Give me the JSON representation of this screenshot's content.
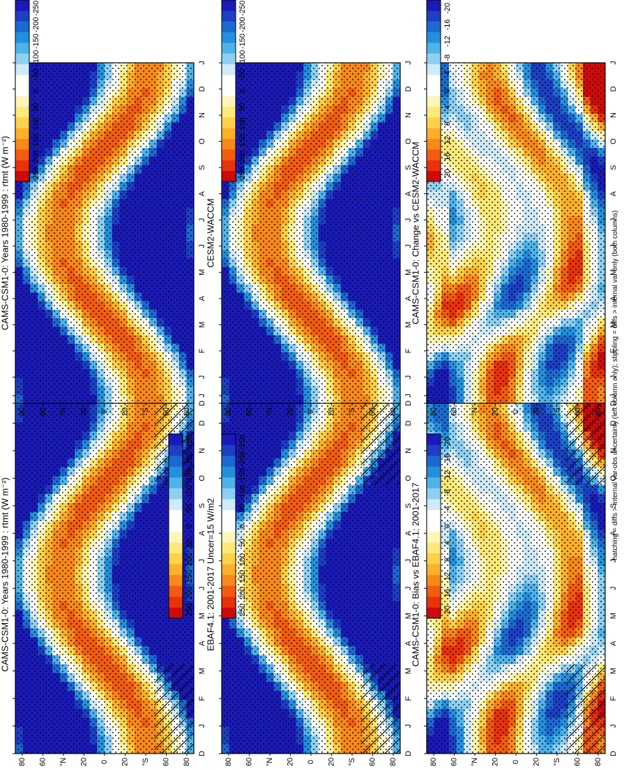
{
  "figure": {
    "orientation": "rotated 90 degrees clockwise (portrait page of a landscape figure)",
    "footnote": "hatching = diffs > internal var-obs uncertainty (left column only); stippling = diffs > internal var only (both columns)"
  },
  "chart_data": [
    {
      "id": "bl",
      "type": "heatmap",
      "title": "CAMS-CSM1-0: Years 1980-1999 : rtmt (W m⁻²)",
      "x_tick_labels": [
        "D",
        "J",
        "F",
        "M",
        "A",
        "M",
        "J",
        "J",
        "A",
        "S",
        "O",
        "N",
        "D",
        "J"
      ],
      "y_tick_labels": [
        "80",
        "60",
        "°N",
        "20",
        "0",
        "20",
        "°S",
        "60",
        "80"
      ],
      "hatching": true,
      "colorbar": {
        "ticks": [
          "250",
          "200",
          "150",
          "100",
          "50",
          "0",
          "-50",
          "-100",
          "-150",
          "-200",
          "-250"
        ]
      }
    },
    {
      "id": "br",
      "type": "heatmap",
      "title": "CAMS-CSM1-0: Years 1980-1999 : rtmt (W m⁻²)",
      "x_tick_labels": [
        "D",
        "J",
        "F",
        "M",
        "A",
        "M",
        "J",
        "J",
        "A",
        "S",
        "O",
        "N",
        "D",
        "J"
      ],
      "y_tick_labels": [
        "80",
        "60",
        "°N",
        "20",
        "0",
        "20",
        "°S",
        "60",
        "80"
      ],
      "hatching": false,
      "colorbar": {
        "ticks": [
          "250",
          "200",
          "150",
          "100",
          "50",
          "0",
          "-50",
          "-100",
          "-150",
          "-200",
          "-250"
        ]
      }
    },
    {
      "id": "ml",
      "type": "heatmap",
      "title": "EBAF4.1: 2001-2017 Uncer=15 W/m2",
      "x_tick_labels": [
        "D",
        "J",
        "F",
        "M",
        "A",
        "M",
        "J",
        "J",
        "A",
        "S",
        "O",
        "N",
        "D",
        "J"
      ],
      "y_tick_labels": [
        "80",
        "60",
        "°N",
        "20",
        "0",
        "20",
        "°S",
        "60",
        "80"
      ],
      "hatching": true,
      "colorbar": {
        "ticks": [
          "250",
          "200",
          "150",
          "100",
          "50",
          "0",
          "-50",
          "-100",
          "-150",
          "-200",
          "-250"
        ]
      }
    },
    {
      "id": "mr",
      "type": "heatmap",
      "title": "CESM2-WACCM",
      "x_tick_labels": [
        "D",
        "J",
        "F",
        "M",
        "A",
        "M",
        "J",
        "J",
        "A",
        "S",
        "O",
        "N",
        "D",
        "J"
      ],
      "y_tick_labels": [
        "80",
        "60",
        "°N",
        "20",
        "0",
        "20",
        "°S",
        "60",
        "80"
      ],
      "hatching": false,
      "colorbar": {
        "ticks": [
          "250",
          "200",
          "150",
          "100",
          "50",
          "0",
          "-50",
          "-100",
          "-150",
          "-200",
          "-250"
        ]
      }
    },
    {
      "id": "tl",
      "type": "heatmap",
      "title": "CAMS-CSM1-0: Bias vs EBAF4.1: 2001-2017",
      "x_tick_labels": [
        "D",
        "J",
        "F",
        "M",
        "A",
        "M",
        "J",
        "J",
        "A",
        "S",
        "O",
        "N",
        "D",
        "J"
      ],
      "y_tick_labels": [
        "80",
        "60",
        "°N",
        "20",
        "0",
        "20",
        "°S",
        "60",
        "80"
      ],
      "hatching": true,
      "colorbar": {
        "ticks": [
          "20",
          "16",
          "12",
          "8",
          "4",
          "0",
          "-4",
          "-8",
          "-12",
          "-16",
          "-20"
        ]
      }
    },
    {
      "id": "tr",
      "type": "heatmap",
      "title": "CAMS-CSM1-0: Change vs CESM2-WACCM",
      "x_tick_labels": [
        "D",
        "J",
        "F",
        "M",
        "A",
        "M",
        "J",
        "J",
        "A",
        "S",
        "O",
        "N",
        "D",
        "J"
      ],
      "y_tick_labels": [
        "80",
        "60",
        "°N",
        "20",
        "0",
        "20",
        "°S",
        "60",
        "80"
      ],
      "hatching": false,
      "colorbar": {
        "ticks": [
          "20",
          "16",
          "12",
          "8",
          "4",
          "0",
          "-4",
          "-8",
          "-12",
          "-16",
          "-20"
        ]
      }
    }
  ],
  "colors": {
    "scale": [
      "#cf0a0a",
      "#e8320c",
      "#f25c10",
      "#f7881a",
      "#fbb02a",
      "#fdd14a",
      "#fde979",
      "#fef6b8",
      "#ffffff",
      "#ffffff",
      "#cfeaf8",
      "#8ed0f2",
      "#4fb3ea",
      "#2290dc",
      "#1a6ad0",
      "#1c3fc4",
      "#1a1ab8"
    ]
  }
}
